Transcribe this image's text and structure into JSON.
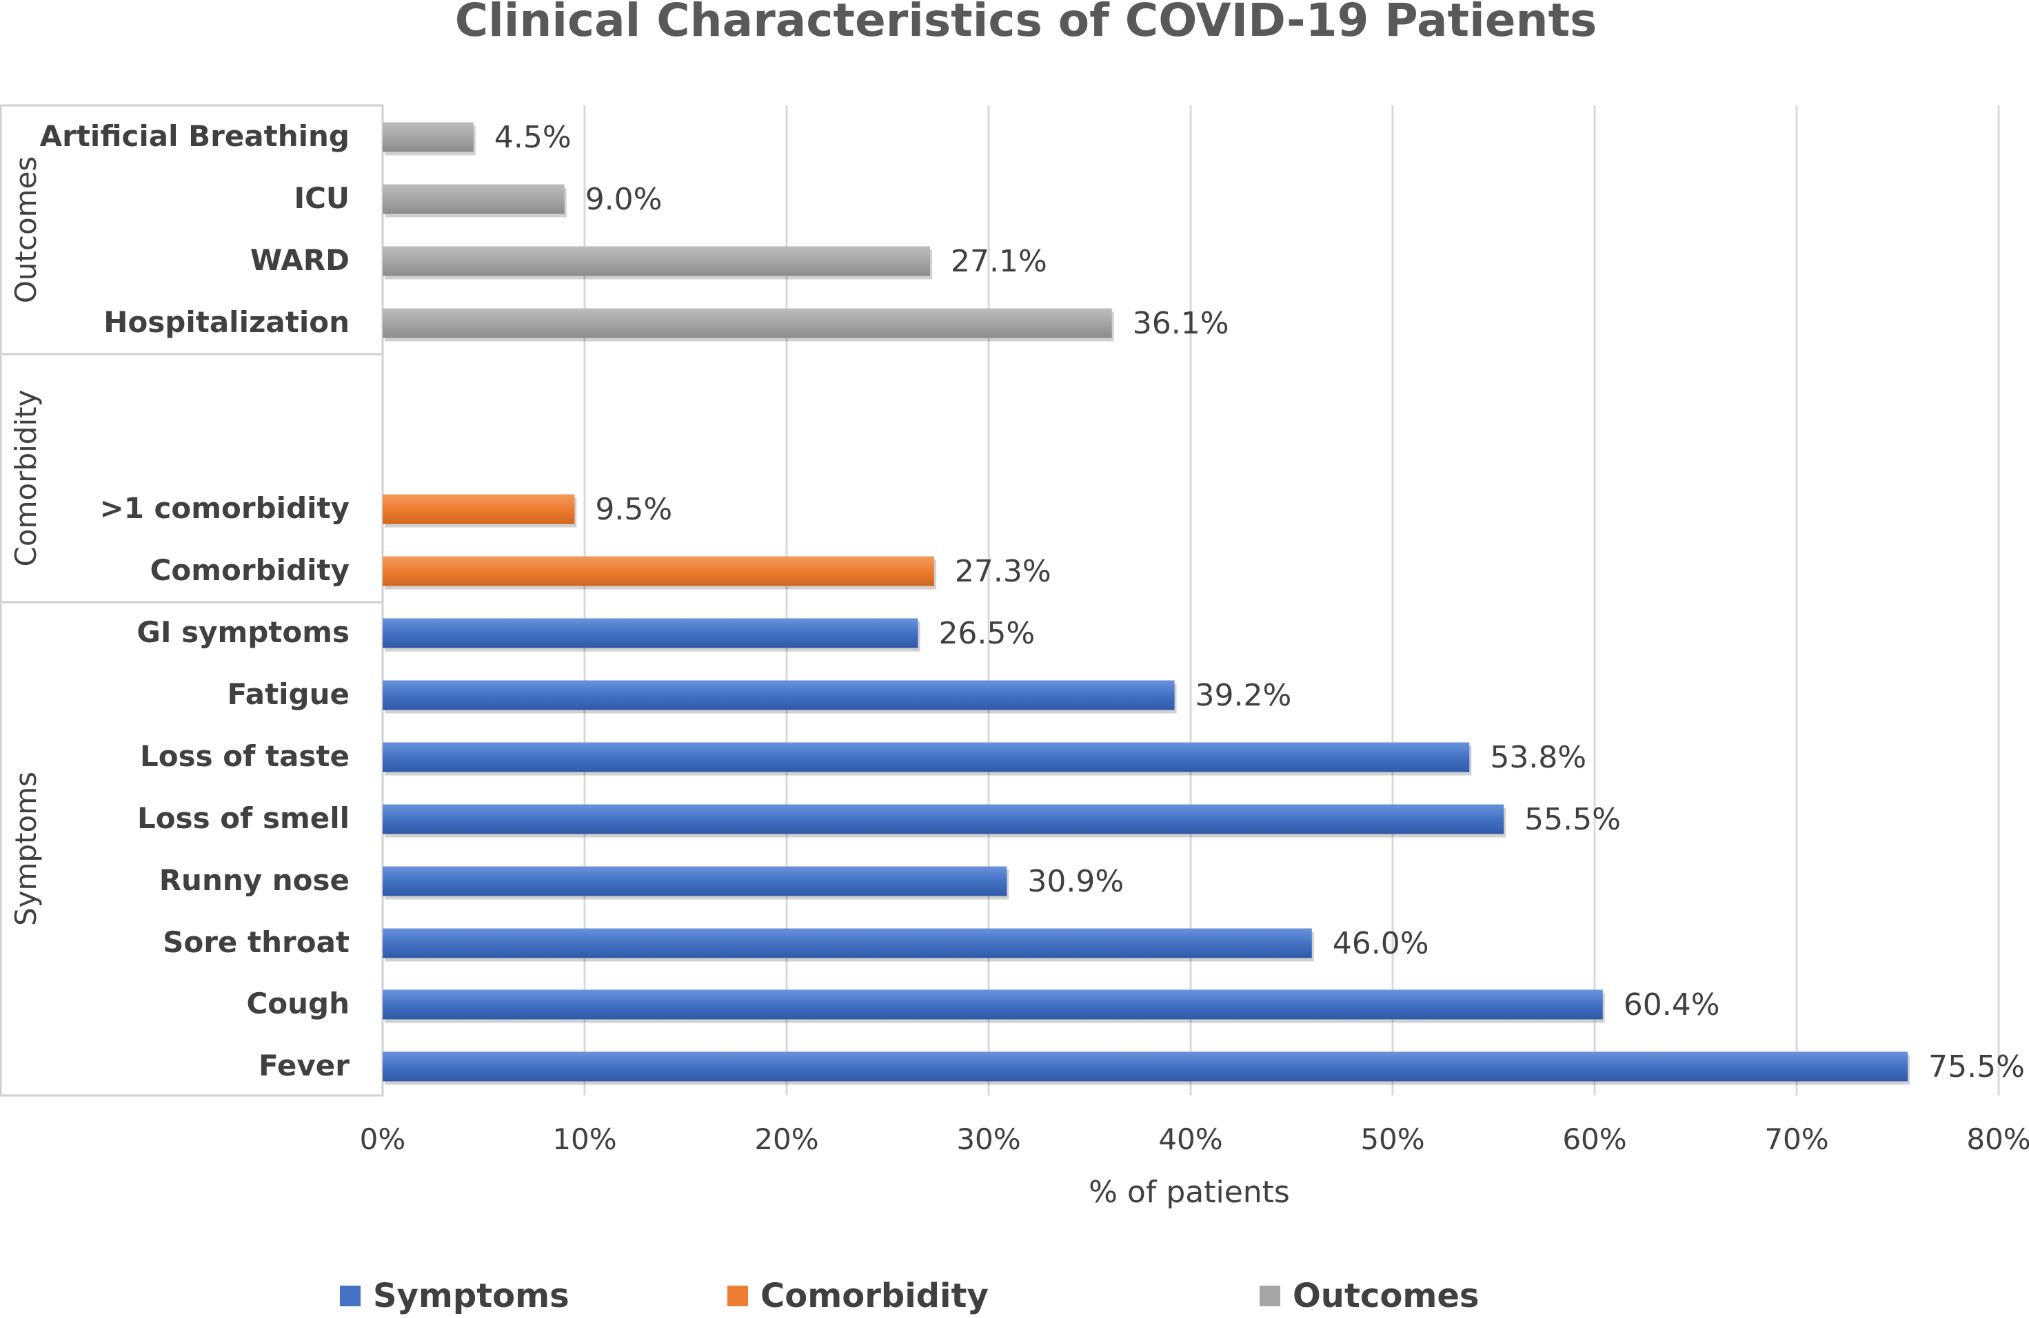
{
  "chart_data": {
    "type": "bar",
    "orientation": "horizontal",
    "title": "Clinical Characteristics of COVID-19 Patients",
    "xlabel": "% of patients",
    "ylabel": "",
    "xlim": [
      0,
      80
    ],
    "x_ticks": [
      0,
      10,
      20,
      30,
      40,
      50,
      60,
      70,
      80
    ],
    "x_tick_labels": [
      "0%",
      "10%",
      "20%",
      "30%",
      "40%",
      "50%",
      "60%",
      "70%",
      "80%"
    ],
    "grid": "vertical",
    "legend_position": "bottom",
    "series": [
      {
        "name": "Symptoms",
        "color": "#4472C4"
      },
      {
        "name": "Comorbidity",
        "color": "#ED7D31"
      },
      {
        "name": "Outcomes",
        "color": "#A5A5A5"
      }
    ],
    "groups": [
      {
        "name": "Outcomes",
        "series": "Outcomes",
        "categories": [
          "Artificial Breathing",
          "ICU",
          "WARD",
          "Hospitalization"
        ],
        "values": [
          4.5,
          9.0,
          27.1,
          36.1
        ],
        "labels": [
          "4.5%",
          "9.0%",
          "27.1%",
          "36.1%"
        ]
      },
      {
        "name": "Comorbidity",
        "series": "Comorbidity",
        "categories": [
          ">1 comorbidity",
          "Comorbidity"
        ],
        "values": [
          9.5,
          27.3
        ],
        "labels": [
          "9.5%",
          "27.3%"
        ]
      },
      {
        "name": "Symptoms",
        "series": "Symptoms",
        "categories": [
          "GI symptoms",
          "Fatigue",
          "Loss of taste",
          "Loss of smell",
          "Runny nose",
          "Sore throat",
          "Cough",
          "Fever"
        ],
        "values": [
          26.5,
          39.2,
          53.8,
          55.5,
          30.9,
          46.0,
          60.4,
          75.5
        ],
        "labels": [
          "26.5%",
          "39.2%",
          "53.8%",
          "55.5%",
          "30.9%",
          "46.0%",
          "60.4%",
          "75.5%"
        ]
      }
    ]
  }
}
